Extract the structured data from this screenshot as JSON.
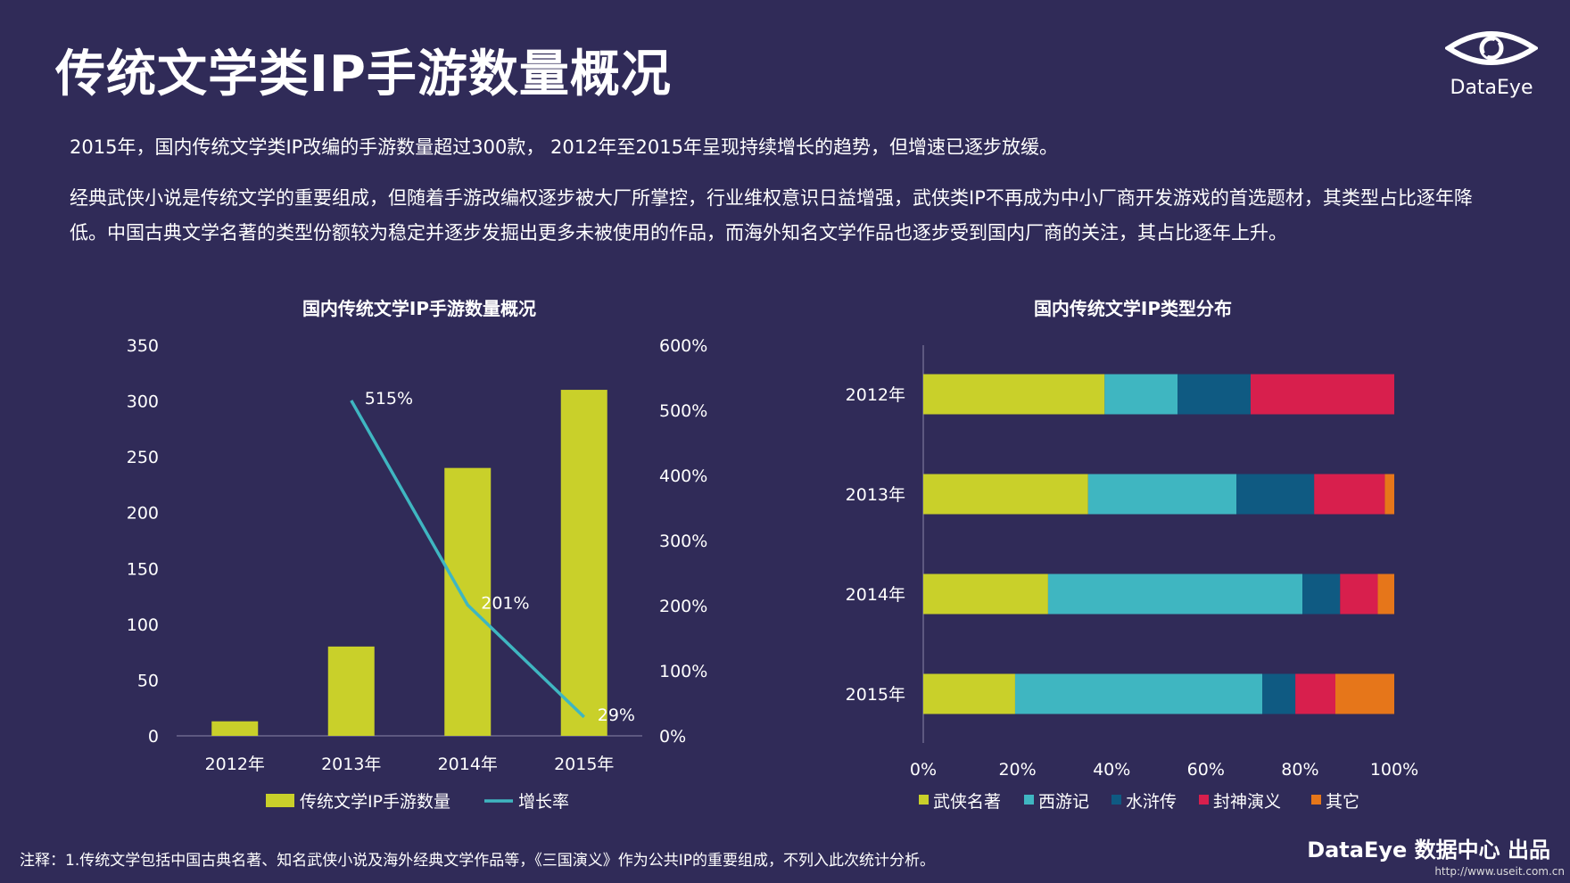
{
  "title": "传统文学类IP手游数量概况",
  "logo": {
    "text": "DataEye"
  },
  "paragraphs": [
    "2015年，国内传统文学类IP改编的手游数量超过300款， 2012年至2015年呈现持续增长的趋势，但增速已逐步放缓。",
    "经典武侠小说是传统文学的重要组成，但随着手游改编权逐步被大厂所掌控，行业维权意识日益增强，武侠类IP不再成为中小厂商开发游戏的首选题材，其类型占比逐年降低。中国古典文学名著的类型份额较为稳定并逐步发掘出更多未被使用的作品，而海外知名文学作品也逐步受到国内厂商的关注，其占比逐年上升。"
  ],
  "note": "注释：1.传统文学包括中国古典名著、知名武侠小说及海外经典文学作品等，《三国演义》作为公共IP的重要组成，不列入此次统计分析。",
  "footer": "DataEye 数据中心 出品",
  "url": "http://www.useit.com.cn",
  "colors": {
    "bar": "#c9d02a",
    "line": "#3fb6c1",
    "wuxia": "#c9d02a",
    "xiyou": "#3fb6c1",
    "shuihu": "#0f5a82",
    "fengshen": "#d81f4d",
    "other": "#e6761a"
  },
  "chart_data": [
    {
      "type": "bar",
      "title": "国内传统文学IP手游数量概况",
      "categories": [
        "2012年",
        "2013年",
        "2014年",
        "2015年"
      ],
      "series": [
        {
          "name": "传统文学IP手游数量",
          "axis": "left",
          "values": [
            13,
            80,
            240,
            310
          ]
        },
        {
          "name": "增长率",
          "type": "line",
          "axis": "right",
          "values": [
            null,
            515,
            201,
            29
          ],
          "labels": [
            "",
            "515%",
            "201%",
            "29%"
          ]
        }
      ],
      "ylim": [
        0,
        350
      ],
      "yticks": [
        "0",
        "50",
        "100",
        "150",
        "200",
        "250",
        "300",
        "350"
      ],
      "y2lim": [
        0,
        600
      ],
      "y2ticks": [
        "0%",
        "100%",
        "200%",
        "300%",
        "400%",
        "500%",
        "600%"
      ],
      "legend": "bottom"
    },
    {
      "type": "bar",
      "orientation": "horizontal",
      "stacked": true,
      "title": "国内传统文学IP类型分布",
      "categories": [
        "2012年",
        "2013年",
        "2014年",
        "2015年"
      ],
      "series": [
        {
          "name": "武侠名著",
          "values": [
            38.5,
            35,
            26.5,
            19.5
          ]
        },
        {
          "name": "西游记",
          "values": [
            15.5,
            31.5,
            54,
            52.5
          ]
        },
        {
          "name": "水浒传",
          "values": [
            15.5,
            16.5,
            8,
            7
          ]
        },
        {
          "name": "封神演义",
          "values": [
            30.5,
            15,
            8,
            8.5
          ]
        },
        {
          "name": "其它",
          "values": [
            0,
            2,
            3.5,
            12.5
          ]
        }
      ],
      "xlim": [
        0,
        100
      ],
      "xticks": [
        "0%",
        "20%",
        "40%",
        "60%",
        "80%",
        "100%"
      ],
      "legend": "bottom"
    }
  ]
}
